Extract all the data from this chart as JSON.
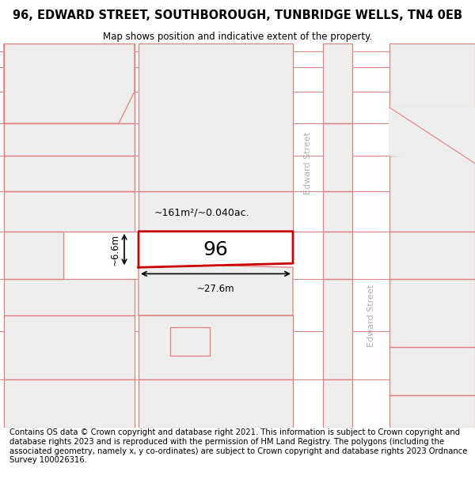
{
  "title_line1": "96, EDWARD STREET, SOUTHBOROUGH, TUNBRIDGE WELLS, TN4 0EB",
  "title_line2": "Map shows position and indicative extent of the property.",
  "footer_text": "Contains OS data © Crown copyright and database right 2021. This information is subject to Crown copyright and database rights 2023 and is reproduced with the permission of HM Land Registry. The polygons (including the associated geometry, namely x, y co-ordinates) are subject to Crown copyright and database rights 2023 Ordnance Survey 100026316.",
  "background_color": "#ffffff",
  "map_bg": "#f7f7f7",
  "street_white": "#ffffff",
  "poly_fill": "#eeeeee",
  "poly_edge": "#e08080",
  "hi_edge": "#cc0000",
  "hi_fill": "#ffffff",
  "street_text_color": "#b0b0b0",
  "label_96": "96",
  "area_label": "~161m²/~0.040ac.",
  "width_label": "~27.6m",
  "height_label": "~6.6m",
  "edward_street": "Edward Street",
  "title_fs": 10.5,
  "sub_fs": 8.5,
  "footer_fs": 7.2
}
